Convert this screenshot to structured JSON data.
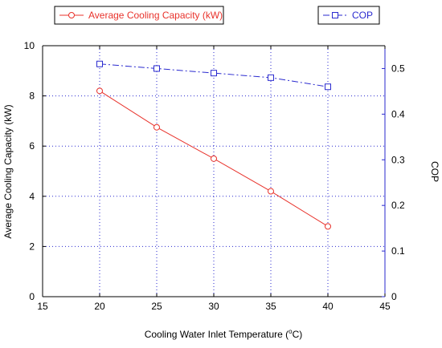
{
  "chart_data": {
    "type": "line",
    "xlabel_prefix": "Cooling Water Inlet Temperature (",
    "xlabel_sup": "o",
    "xlabel_suffix": "C)",
    "ylabel_left": "Average Cooling Capacity (kW)",
    "ylabel_right": "COP",
    "x": [
      20,
      25,
      30,
      35,
      40
    ],
    "xlim": [
      15,
      45
    ],
    "xticks": [
      15,
      20,
      25,
      30,
      35,
      40,
      45
    ],
    "ylim_left": [
      0,
      10
    ],
    "yticks_left": [
      0,
      2,
      4,
      6,
      8,
      10
    ],
    "ylim_right": [
      0,
      0.55
    ],
    "yticks_right": [
      0,
      0.1,
      0.2,
      0.3,
      0.4,
      0.5
    ],
    "grid": true,
    "series": [
      {
        "name": "Average Cooling Capacity (kW)",
        "axis": "left",
        "values": [
          8.2,
          6.75,
          5.5,
          4.2,
          2.8
        ],
        "color": "#e8322b",
        "marker": "circle",
        "line": "solid"
      },
      {
        "name": "COP",
        "axis": "right",
        "values": [
          0.51,
          0.5,
          0.49,
          0.48,
          0.46
        ],
        "color": "#2a2acf",
        "marker": "square",
        "line": "dash-dot"
      }
    ]
  },
  "colors": {
    "axis": "#000000",
    "grid": "#2a2acf",
    "right_axis": "#2a2acf"
  }
}
